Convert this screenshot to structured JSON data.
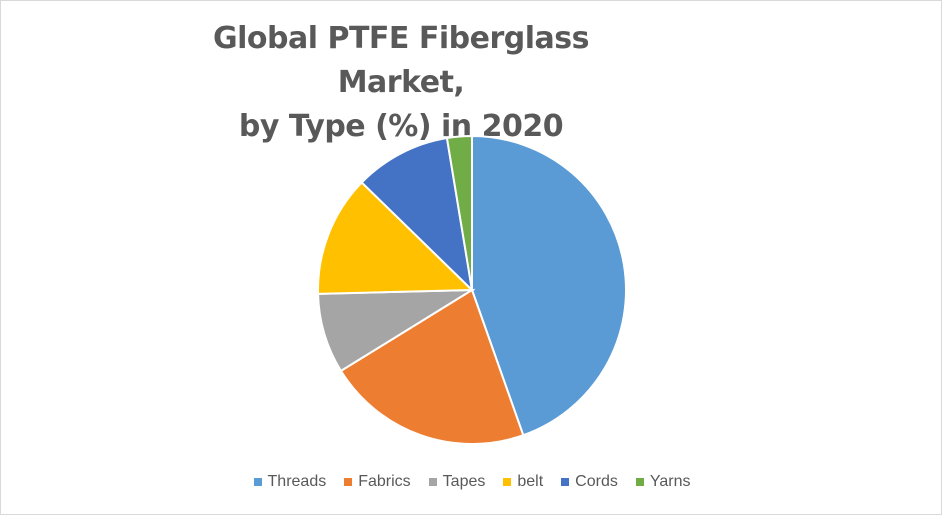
{
  "chart_data": {
    "type": "pie",
    "title_line1": "Global PTFE Fiberglass Market,",
    "title_line2": "by Type (%) in 2020",
    "categories": [
      "Threads",
      "Fabrics",
      "Tapes",
      "belt",
      "Cords",
      "Yarns"
    ],
    "values": [
      44.6,
      21.6,
      8.4,
      12.7,
      10.1,
      2.6
    ],
    "colors": [
      "#5b9bd5",
      "#ed7d31",
      "#a5a5a5",
      "#ffc000",
      "#4472c4",
      "#70ad47"
    ],
    "legend_position": "bottom",
    "start_angle_deg": 0,
    "direction": "clockwise"
  }
}
